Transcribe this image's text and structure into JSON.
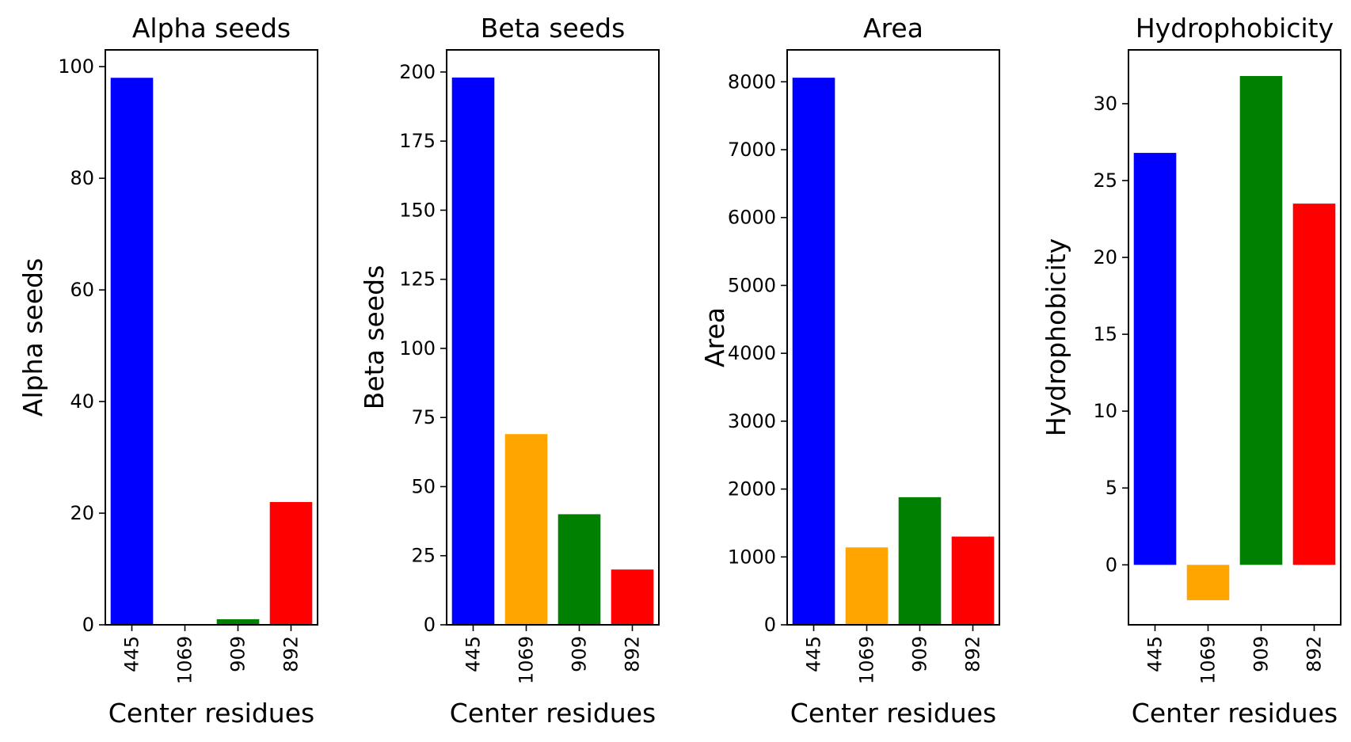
{
  "chart_data": [
    {
      "type": "bar",
      "title": "Alpha seeds",
      "xlabel": "Center residues",
      "ylabel": "Alpha seeds",
      "categories": [
        "445",
        "1069",
        "909",
        "892"
      ],
      "values": [
        98,
        0,
        1,
        22
      ],
      "colors": [
        "#0000ff",
        "#ffa500",
        "#008000",
        "#ff0000"
      ],
      "ylim": [
        0,
        103
      ],
      "yticks": [
        0,
        20,
        40,
        60,
        80,
        100
      ],
      "grid": false
    },
    {
      "type": "bar",
      "title": "Beta seeds",
      "xlabel": "Center residues",
      "ylabel": "Beta seeds",
      "categories": [
        "445",
        "1069",
        "909",
        "892"
      ],
      "values": [
        198,
        69,
        40,
        20
      ],
      "colors": [
        "#0000ff",
        "#ffa500",
        "#008000",
        "#ff0000"
      ],
      "ylim": [
        0,
        208
      ],
      "yticks": [
        0,
        25,
        50,
        75,
        100,
        125,
        150,
        175,
        200
      ],
      "grid": false
    },
    {
      "type": "bar",
      "title": "Area",
      "xlabel": "Center residues",
      "ylabel": "Area",
      "categories": [
        "445",
        "1069",
        "909",
        "892"
      ],
      "values": [
        8060,
        1140,
        1880,
        1300
      ],
      "colors": [
        "#0000ff",
        "#ffa500",
        "#008000",
        "#ff0000"
      ],
      "ylim": [
        0,
        8470
      ],
      "yticks": [
        0,
        1000,
        2000,
        3000,
        4000,
        5000,
        6000,
        7000,
        8000
      ],
      "grid": false
    },
    {
      "type": "bar",
      "title": "Hydrophobicity",
      "xlabel": "Center residues",
      "ylabel": "Hydrophobicity",
      "categories": [
        "445",
        "1069",
        "909",
        "892"
      ],
      "values": [
        26.8,
        -2.3,
        31.8,
        23.5
      ],
      "colors": [
        "#0000ff",
        "#ffa500",
        "#008000",
        "#ff0000"
      ],
      "ylim": [
        -3.9,
        33.5
      ],
      "yticks": [
        0,
        5,
        10,
        15,
        20,
        25,
        30
      ],
      "grid": false
    }
  ]
}
